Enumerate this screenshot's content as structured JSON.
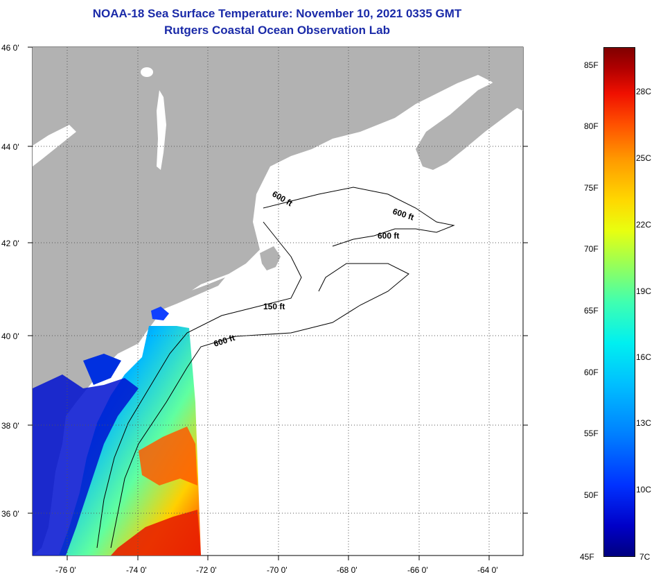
{
  "title": "NOAA-18 Sea Surface Temperature:  November 10, 2021 0335 GMT",
  "subtitle": "Rutgers Coastal Ocean Observation Lab",
  "lat_labels": [
    "46 0'",
    "44 0'",
    "42 0'",
    "40 0'",
    "38 0'",
    "36 0'"
  ],
  "lon_labels": [
    "-76 0'",
    "-74 0'",
    "-72 0'",
    "-70 0'",
    "-68 0'",
    "-66 0'",
    "-64 0'"
  ],
  "contours": {
    "c1": "600 ft",
    "c2": "600 ft",
    "c3": "600 ft",
    "c4": "150 ft",
    "c5": "600 ft"
  },
  "colorbar": {
    "fahrenheit": [
      "85F",
      "80F",
      "75F",
      "70F",
      "65F",
      "60F",
      "55F",
      "50F",
      "45F"
    ],
    "celsius": [
      "28C",
      "25C",
      "22C",
      "19C",
      "16C",
      "13C",
      "10C",
      "7C"
    ]
  },
  "colors": {
    "land": "#b2b2b2",
    "title": "#1a2aa8",
    "cold": "#0000c8",
    "warm": "#ff3000"
  }
}
